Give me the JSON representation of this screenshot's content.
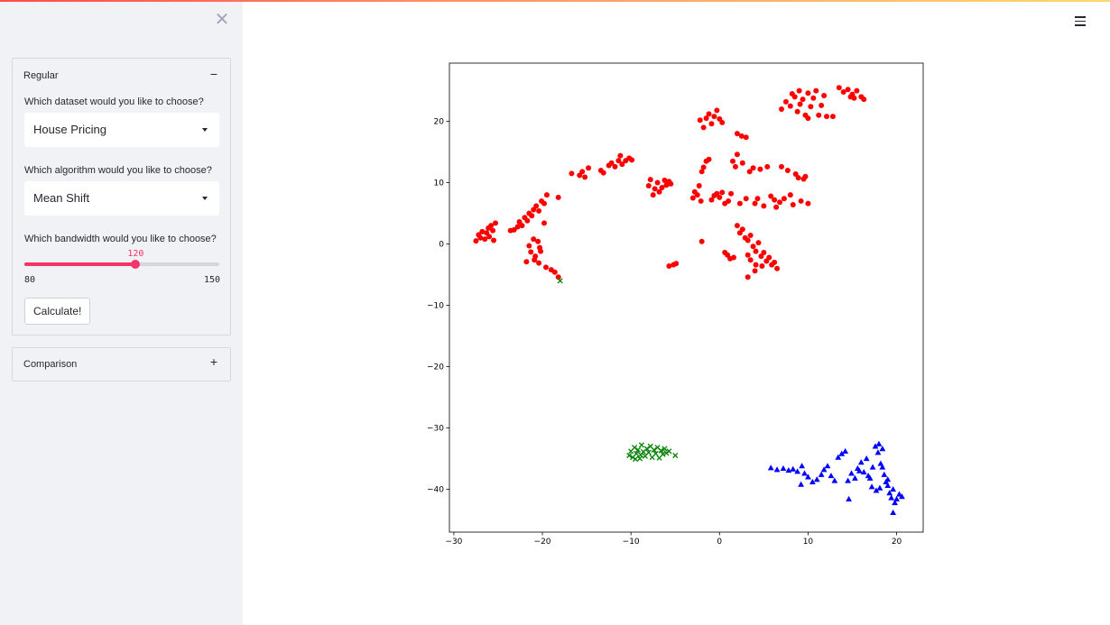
{
  "sidebar": {
    "close_icon": "close-icon",
    "regular": {
      "title": "Regular",
      "toggle": "−",
      "dataset_label": "Which dataset would you like to choose?",
      "dataset_value": "House Pricing",
      "algorithm_label": "Which algorithm would you like to choose?",
      "algorithm_value": "Mean Shift",
      "bandwidth_label": "Which bandwidth would you like to choose?",
      "bandwidth": {
        "value": "120",
        "min": "80",
        "max": "150"
      },
      "calculate_label": "Calculate!"
    },
    "comparison": {
      "title": "Comparison",
      "toggle": "+"
    }
  },
  "header": {
    "menu_icon": "hamburger-menu-icon"
  },
  "colors": {
    "accent": "#f63366",
    "sidebar_bg": "#f0f2f6",
    "cluster_red": "#ff0000",
    "cluster_green": "#008000",
    "cluster_blue": "#0000ff"
  },
  "chart_data": {
    "type": "scatter",
    "title": "",
    "xlabel": "",
    "ylabel": "",
    "xlim": [
      -30.5,
      23
    ],
    "ylim": [
      -47,
      29.5
    ],
    "xticks": [
      -30,
      -20,
      -10,
      0,
      10,
      20
    ],
    "yticks": [
      -40,
      -30,
      -20,
      -10,
      0,
      10,
      20
    ],
    "x_tick_labels": [
      "−30",
      "−20",
      "−10",
      "0",
      "10",
      "20"
    ],
    "y_tick_labels": [
      "−40",
      "−30",
      "−20",
      "−10",
      "0",
      "10",
      "20"
    ],
    "grid": false,
    "series": [
      {
        "marker": "circle",
        "color": "#ff0000",
        "points": [
          [
            -27.5,
            0.5
          ],
          [
            -27.2,
            1.5
          ],
          [
            -27,
            1
          ],
          [
            -26.8,
            2
          ],
          [
            -26.5,
            0.8
          ],
          [
            -26.3,
            1.8
          ],
          [
            -26.1,
            2.6
          ],
          [
            -26,
            1.2
          ],
          [
            -25.8,
            3
          ],
          [
            -25.6,
            2.2
          ],
          [
            -25.5,
            0.6
          ],
          [
            -25.3,
            3.4
          ],
          [
            -23.6,
            2.2
          ],
          [
            -23.2,
            2.3
          ],
          [
            -22.8,
            2.8
          ],
          [
            -22.6,
            3.6
          ],
          [
            -22.3,
            3
          ],
          [
            -22,
            4.3
          ],
          [
            -21.7,
            3.8
          ],
          [
            -21.5,
            5
          ],
          [
            -21.2,
            4.6
          ],
          [
            -21,
            5.6
          ],
          [
            -20.7,
            6.2
          ],
          [
            -20.4,
            5.4
          ],
          [
            -20.1,
            7
          ],
          [
            -19.8,
            6.6
          ],
          [
            -19.5,
            8
          ],
          [
            -19.8,
            3.4
          ],
          [
            -18.2,
            7.6
          ],
          [
            -20.5,
            0.4
          ],
          [
            -20.3,
            -0.6
          ],
          [
            -20.2,
            -1.2
          ],
          [
            -20.8,
            -2
          ],
          [
            -21.3,
            -1.3
          ],
          [
            -21.5,
            -0.3
          ],
          [
            -21,
            0.8
          ],
          [
            -20.9,
            -2.6
          ],
          [
            -21.8,
            -2.9
          ],
          [
            -20.4,
            -3.1
          ],
          [
            -19.6,
            -3.8
          ],
          [
            -19,
            -4.2
          ],
          [
            -18.6,
            -4.6
          ],
          [
            -18.2,
            -5.4
          ],
          [
            -16.7,
            11.5
          ],
          [
            -15.8,
            11.2
          ],
          [
            -15.5,
            11.8
          ],
          [
            -15.2,
            10.9
          ],
          [
            -14.8,
            12.4
          ],
          [
            -13.4,
            12
          ],
          [
            -13.1,
            11.6
          ],
          [
            -12.5,
            12.8
          ],
          [
            -12.2,
            13.2
          ],
          [
            -11.8,
            12.6
          ],
          [
            -11.4,
            13.6
          ],
          [
            -11.2,
            14.4
          ],
          [
            -11,
            13
          ],
          [
            -10.6,
            13.6
          ],
          [
            -10.2,
            14
          ],
          [
            -9.9,
            13.7
          ],
          [
            -8,
            9.5
          ],
          [
            -7.8,
            10.5
          ],
          [
            -7.5,
            8
          ],
          [
            -7.3,
            9
          ],
          [
            -7,
            10
          ],
          [
            -6.8,
            8.5
          ],
          [
            -6.5,
            9.2
          ],
          [
            -6.2,
            10.4
          ],
          [
            -6,
            9.6
          ],
          [
            -5.7,
            10.2
          ],
          [
            -5.5,
            9.8
          ],
          [
            -5.7,
            -3.6
          ],
          [
            -5.2,
            -3.4
          ],
          [
            -4.9,
            -3.2
          ],
          [
            -2,
            0.4
          ],
          [
            -3,
            7.5
          ],
          [
            -2.8,
            8.5
          ],
          [
            -2.5,
            8
          ],
          [
            -2.3,
            9.5
          ],
          [
            -2.1,
            7
          ],
          [
            -2,
            11.8
          ],
          [
            -1.8,
            12.5
          ],
          [
            -1.5,
            13.5
          ],
          [
            -1.2,
            13.8
          ],
          [
            -0.9,
            7.2
          ],
          [
            -0.6,
            7.9
          ],
          [
            -0.3,
            8.2
          ],
          [
            0,
            7.6
          ],
          [
            0.3,
            8.4
          ],
          [
            0.6,
            6.6
          ],
          [
            1,
            7
          ],
          [
            1.3,
            8.2
          ],
          [
            1.5,
            13.5
          ],
          [
            1.8,
            12.6
          ],
          [
            2,
            14.6
          ],
          [
            2.3,
            6.6
          ],
          [
            2.6,
            13.2
          ],
          [
            3,
            7.4
          ],
          [
            3.4,
            11.8
          ],
          [
            3.8,
            12.4
          ],
          [
            4,
            6.6
          ],
          [
            4.3,
            7.4
          ],
          [
            4.6,
            12.2
          ],
          [
            5,
            6.2
          ],
          [
            5.4,
            12.6
          ],
          [
            5.8,
            7.8
          ],
          [
            6.2,
            7.2
          ],
          [
            6.4,
            6
          ],
          [
            6.8,
            6.8
          ],
          [
            7,
            12.6
          ],
          [
            7.3,
            7.4
          ],
          [
            7.7,
            12
          ],
          [
            8,
            8
          ],
          [
            8.3,
            6.4
          ],
          [
            8.6,
            11.4
          ],
          [
            8.9,
            10.8
          ],
          [
            9.2,
            7
          ],
          [
            9.5,
            10.6
          ],
          [
            9.7,
            11
          ],
          [
            10,
            6.6
          ],
          [
            -2.2,
            20.2
          ],
          [
            -1.8,
            19
          ],
          [
            -1.5,
            20.5
          ],
          [
            -1.2,
            21.2
          ],
          [
            -0.9,
            19.6
          ],
          [
            -0.6,
            20.8
          ],
          [
            -0.3,
            21.8
          ],
          [
            0,
            20.4
          ],
          [
            0.3,
            19.8
          ],
          [
            2,
            18
          ],
          [
            2.5,
            17.6
          ],
          [
            3,
            17.4
          ],
          [
            2,
            3
          ],
          [
            2.3,
            1.8
          ],
          [
            2.6,
            2.4
          ],
          [
            2.9,
            1
          ],
          [
            3.2,
            0.6
          ],
          [
            3.5,
            1.4
          ],
          [
            3.8,
            -0.4
          ],
          [
            4.1,
            -1.2
          ],
          [
            4.4,
            0.2
          ],
          [
            4.7,
            -2
          ],
          [
            5,
            -1.4
          ],
          [
            5.3,
            -2.8
          ],
          [
            5.6,
            -2.2
          ],
          [
            5.9,
            -3.4
          ],
          [
            6.2,
            -3
          ],
          [
            6.5,
            -4
          ],
          [
            3.2,
            -1.8
          ],
          [
            3.5,
            -2.6
          ],
          [
            4.8,
            -3.6
          ],
          [
            0.6,
            -1.4
          ],
          [
            0.9,
            -1.8
          ],
          [
            1.2,
            -2.4
          ],
          [
            1.6,
            -2.2
          ],
          [
            4.1,
            -3.4
          ],
          [
            3.2,
            -5.4
          ],
          [
            4,
            -4.4
          ],
          [
            7,
            22
          ],
          [
            7.5,
            23.2
          ],
          [
            8,
            22.5
          ],
          [
            8.5,
            24
          ],
          [
            8.8,
            21.6
          ],
          [
            9.1,
            22.8
          ],
          [
            9.4,
            23.6
          ],
          [
            9.7,
            21
          ],
          [
            10,
            24.6
          ],
          [
            10.3,
            22.4
          ],
          [
            10.6,
            23.8
          ],
          [
            10.9,
            25
          ],
          [
            11.2,
            21
          ],
          [
            11.5,
            22.6
          ],
          [
            11.8,
            24.2
          ],
          [
            12.1,
            20.8
          ],
          [
            8.2,
            24.5
          ],
          [
            9,
            25
          ],
          [
            10,
            20.5
          ],
          [
            12.8,
            20.8
          ],
          [
            13.5,
            25.5
          ],
          [
            14,
            24.8
          ],
          [
            14.5,
            25.2
          ],
          [
            15,
            24.4
          ],
          [
            15.5,
            25
          ],
          [
            16,
            24
          ],
          [
            16.3,
            23.6
          ],
          [
            14.8,
            24
          ],
          [
            15.2,
            23.8
          ]
        ]
      },
      {
        "marker": "x",
        "color": "#008000",
        "points": [
          [
            -10.2,
            -34.5
          ],
          [
            -10,
            -33.8
          ],
          [
            -9.8,
            -34.8
          ],
          [
            -9.6,
            -33.2
          ],
          [
            -9.4,
            -34.2
          ],
          [
            -9.2,
            -33.6
          ],
          [
            -9,
            -35
          ],
          [
            -8.8,
            -32.8
          ],
          [
            -8.6,
            -33.9
          ],
          [
            -8.4,
            -34.6
          ],
          [
            -8.2,
            -33.4
          ],
          [
            -8,
            -34
          ],
          [
            -7.8,
            -33
          ],
          [
            -7.6,
            -34.8
          ],
          [
            -7.4,
            -33.6
          ],
          [
            -7.2,
            -34.2
          ],
          [
            -7,
            -33.2
          ],
          [
            -6.8,
            -34.9
          ],
          [
            -6.6,
            -33.7
          ],
          [
            -6.4,
            -34.3
          ],
          [
            -6.2,
            -33.4
          ],
          [
            -6,
            -34.1
          ],
          [
            -5.7,
            -33.8
          ],
          [
            -9.5,
            -35.1
          ],
          [
            -8.9,
            -34.4
          ],
          [
            -5,
            -34.5
          ],
          [
            -18,
            -6
          ]
        ]
      },
      {
        "marker": "triangle",
        "color": "#0000ff",
        "points": [
          [
            5.8,
            -36.5
          ],
          [
            6.5,
            -36.8
          ],
          [
            7.2,
            -36.6
          ],
          [
            7.8,
            -36.9
          ],
          [
            8.3,
            -36.7
          ],
          [
            8.8,
            -37.1
          ],
          [
            9.3,
            -36.2
          ],
          [
            9.6,
            -37.4
          ],
          [
            10,
            -38
          ],
          [
            10.5,
            -38.8
          ],
          [
            11,
            -38.4
          ],
          [
            11.5,
            -37.6
          ],
          [
            11.8,
            -36.8
          ],
          [
            12.2,
            -36.2
          ],
          [
            12.6,
            -37.8
          ],
          [
            13,
            -38.6
          ],
          [
            13.4,
            -34.8
          ],
          [
            13.8,
            -34.2
          ],
          [
            14.2,
            -33.8
          ],
          [
            14.5,
            -38.6
          ],
          [
            14.9,
            -37.4
          ],
          [
            15.3,
            -38.2
          ],
          [
            15.6,
            -36.6
          ],
          [
            16,
            -35.6
          ],
          [
            16.3,
            -37.2
          ],
          [
            16.6,
            -35
          ],
          [
            17,
            -38.2
          ],
          [
            17.3,
            -36.4
          ],
          [
            17.6,
            -33
          ],
          [
            17.9,
            -34
          ],
          [
            18.2,
            -35.8
          ],
          [
            18.4,
            -33.4
          ],
          [
            18.6,
            -37.6
          ],
          [
            18.8,
            -38.8
          ],
          [
            19,
            -39.4
          ],
          [
            19.2,
            -40.6
          ],
          [
            19.4,
            -41.4
          ],
          [
            19.6,
            -40
          ],
          [
            19.8,
            -42.2
          ],
          [
            20,
            -41.6
          ],
          [
            20.3,
            -40.8
          ],
          [
            20.6,
            -41.2
          ],
          [
            9.2,
            -39.2
          ],
          [
            14.6,
            -41.6
          ],
          [
            19.6,
            -43.8
          ],
          [
            18.1,
            -39.8
          ],
          [
            17.7,
            -40.2
          ],
          [
            17.2,
            -39.6
          ],
          [
            18.4,
            -36.4
          ],
          [
            19,
            -38.4
          ],
          [
            16.8,
            -37.8
          ],
          [
            15.8,
            -37
          ],
          [
            18,
            -32.6
          ]
        ]
      }
    ]
  }
}
